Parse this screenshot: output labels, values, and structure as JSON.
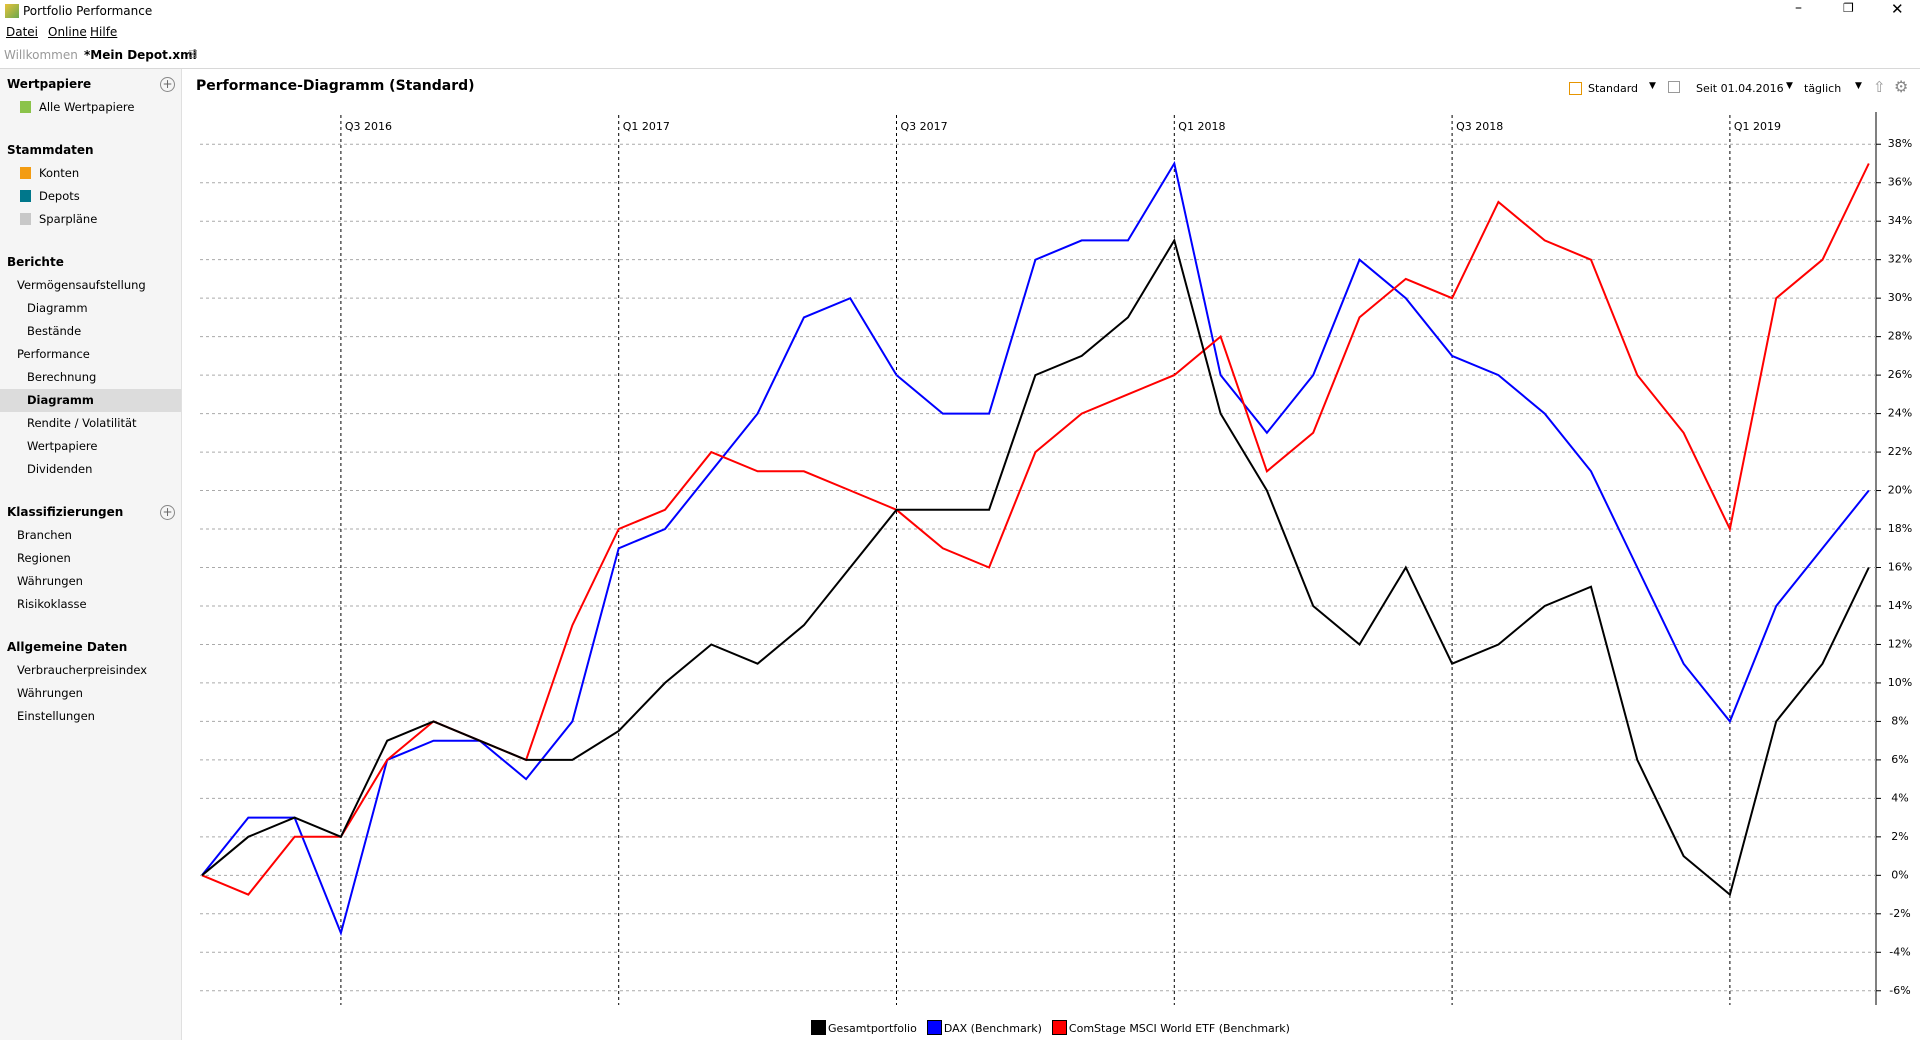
{
  "app": {
    "title": "Portfolio Performance",
    "menu": [
      "Datei",
      "Online",
      "Hilfe"
    ],
    "tabs": [
      {
        "label": "Willkommen",
        "active": false
      },
      {
        "label": "*Mein Depot.xml",
        "active": true
      }
    ]
  },
  "sidebar": [
    {
      "title": "Wertpapiere",
      "add": true,
      "items": [
        {
          "label": "Alle Wertpapiere"
        }
      ]
    },
    {
      "title": "Stammdaten",
      "add": false,
      "items": [
        {
          "label": "Konten"
        },
        {
          "label": "Depots"
        },
        {
          "label": "Sparpläne"
        }
      ]
    },
    {
      "title": "Berichte",
      "add": false,
      "items": [
        {
          "label": "Vermögensaufstellung",
          "children": [
            {
              "label": "Diagramm"
            },
            {
              "label": "Bestände"
            }
          ]
        },
        {
          "label": "Performance",
          "children": [
            {
              "label": "Berechnung"
            },
            {
              "label": "Diagramm",
              "selected": true
            },
            {
              "label": "Rendite / Volatilität"
            },
            {
              "label": "Wertpapiere"
            },
            {
              "label": "Dividenden"
            }
          ]
        }
      ]
    },
    {
      "title": "Klassifizierungen",
      "add": true,
      "items": [
        {
          "label": "Branchen"
        },
        {
          "label": "Regionen"
        },
        {
          "label": "Währungen"
        },
        {
          "label": "Risikoklasse"
        }
      ]
    },
    {
      "title": "Allgemeine Daten",
      "add": false,
      "items": [
        {
          "label": "Verbraucherpreisindex"
        },
        {
          "label": "Währungen"
        },
        {
          "label": "Einstellungen"
        }
      ]
    }
  ],
  "toolbar": {
    "view": "Standard",
    "period": "Seit 01.04.2016",
    "interval": "täglich"
  },
  "chart_data": {
    "type": "line",
    "title": "Performance-Diagramm (Standard)",
    "categories": [
      null,
      null,
      null,
      "Q3 2016",
      null,
      null,
      null,
      null,
      null,
      "Q1 2017",
      null,
      null,
      null,
      null,
      null,
      "Q3 2017",
      null,
      null,
      null,
      null,
      null,
      "Q1 2018",
      null,
      null,
      null,
      null,
      null,
      "Q3 2018",
      null,
      null,
      null,
      null,
      null,
      "Q1 2019",
      null,
      null,
      null
    ],
    "series": [
      {
        "name": "Gesamtportfolio",
        "color": "#000000",
        "values": [
          0,
          2,
          3,
          2,
          7,
          8,
          7,
          6,
          6,
          7.5,
          10,
          12,
          11,
          13,
          16,
          19,
          19,
          19,
          26,
          27,
          29,
          33,
          24,
          20,
          14,
          12,
          16,
          11,
          12,
          14,
          15,
          6,
          1,
          -1,
          8,
          11,
          16
        ]
      },
      {
        "name": "DAX (Benchmark)",
        "color": "#0000ff",
        "values": [
          0,
          3,
          3,
          -3,
          6,
          7,
          7,
          5,
          8,
          17,
          18,
          21,
          24,
          29,
          30,
          26,
          24,
          24,
          32,
          33,
          33,
          37,
          26,
          23,
          26,
          32,
          30,
          27,
          26,
          24,
          21,
          16,
          11,
          8,
          14,
          17,
          20
        ]
      },
      {
        "name": "ComStage MSCI World ETF (Benchmark)",
        "color": "#ff0000",
        "values": [
          0,
          -1,
          2,
          2,
          6,
          8,
          7,
          6,
          13,
          18,
          19,
          22,
          21,
          21,
          20,
          19,
          17,
          16,
          22,
          24,
          25,
          26,
          28,
          21,
          23,
          29,
          31,
          30,
          35,
          33,
          32,
          26,
          23,
          18,
          30,
          32,
          37
        ]
      }
    ],
    "ylim": [
      -7,
      39
    ],
    "yticks": [
      {
        "value": -6,
        "label": "-6%"
      },
      {
        "value": -4,
        "label": "-4%"
      },
      {
        "value": -2,
        "label": "-2%"
      },
      {
        "value": 0,
        "label": "0%"
      },
      {
        "value": 2,
        "label": "2%"
      },
      {
        "value": 4,
        "label": "4%"
      },
      {
        "value": 6,
        "label": "6%"
      },
      {
        "value": 8,
        "label": "8%"
      },
      {
        "value": 10,
        "label": "10%"
      },
      {
        "value": 12,
        "label": "12%"
      },
      {
        "value": 14,
        "label": "14%"
      },
      {
        "value": 16,
        "label": "16%"
      },
      {
        "value": 18,
        "label": "18%"
      },
      {
        "value": 20,
        "label": "20%"
      },
      {
        "value": 22,
        "label": "22%"
      },
      {
        "value": 24,
        "label": "24%"
      },
      {
        "value": 26,
        "label": "26%"
      },
      {
        "value": 28,
        "label": "28%"
      },
      {
        "value": 30,
        "label": "30%"
      },
      {
        "value": 32,
        "label": "32%"
      },
      {
        "value": 34,
        "label": "34%"
      },
      {
        "value": 36,
        "label": "36%"
      },
      {
        "value": 38,
        "label": "38%"
      }
    ],
    "grid": true,
    "legend": "bottom"
  }
}
